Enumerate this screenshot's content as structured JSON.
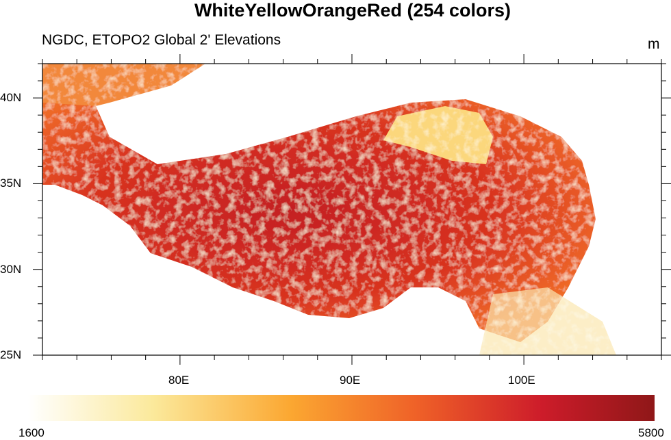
{
  "title": "WhiteYellowOrangeRed (254 colors)",
  "subtitle": "NGDC, ETOPO2 Global 2' Elevations",
  "units": "m",
  "chart_data": {
    "type": "heatmap",
    "title": "WhiteYellowOrangeRed (254 colors)",
    "subtitle": "NGDC, ETOPO2 Global 2' Elevations",
    "variable": "elevation",
    "units": "m",
    "lon_range": [
      72,
      108
    ],
    "lat_range": [
      25,
      42
    ],
    "x_ticks": [
      {
        "value": 80,
        "label": "80E"
      },
      {
        "value": 90,
        "label": "90E"
      },
      {
        "value": 100,
        "label": "100E"
      }
    ],
    "y_ticks": [
      {
        "value": 25,
        "label": "25N"
      },
      {
        "value": 30,
        "label": "30N"
      },
      {
        "value": 35,
        "label": "35N"
      },
      {
        "value": 40,
        "label": "40N"
      }
    ],
    "colorbar": {
      "min": 1600,
      "max": 5800,
      "min_label": "1600",
      "max_label": "5800",
      "orientation": "horizontal",
      "colors": [
        "#ffffff",
        "#fbe99b",
        "#fba731",
        "#ef6128",
        "#cd1c2a",
        "#8f1718"
      ]
    }
  }
}
